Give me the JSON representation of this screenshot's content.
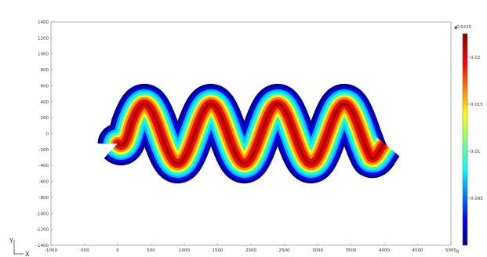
{
  "chart_data": {
    "type": "heatmap",
    "title": "",
    "xlabel": "",
    "ylabel": "",
    "x_ticks": [
      -1000,
      -500,
      0,
      500,
      1000,
      1500,
      2000,
      2500,
      3000,
      3500,
      4000,
      4500,
      5000
    ],
    "y_ticks": [
      1400,
      1200,
      1000,
      800,
      600,
      400,
      200,
      0,
      -200,
      -400,
      -600,
      -800,
      -1000,
      -1200,
      -1400
    ],
    "xlim": [
      -1000,
      5000
    ],
    "ylim": [
      -1400,
      1400
    ],
    "colorbar": {
      "max_label": "0.0225",
      "min_label": "0",
      "ticks": [
        0.02,
        0.015,
        0.01,
        0.005
      ],
      "range": [
        0,
        0.0225
      ],
      "colormap": [
        "#00008b",
        "#0000ff",
        "#00ffff",
        "#ffff00",
        "#ff0000",
        "#8b0000"
      ]
    },
    "geometry": {
      "channel_x_range": [
        0,
        4000
      ],
      "crest_y": 500,
      "trough_y": -500,
      "inlet_y_range": [
        -250,
        0
      ],
      "period": 1000,
      "channel_width": 250
    },
    "triad": {
      "y_label": "Y",
      "x_label": "X"
    }
  }
}
